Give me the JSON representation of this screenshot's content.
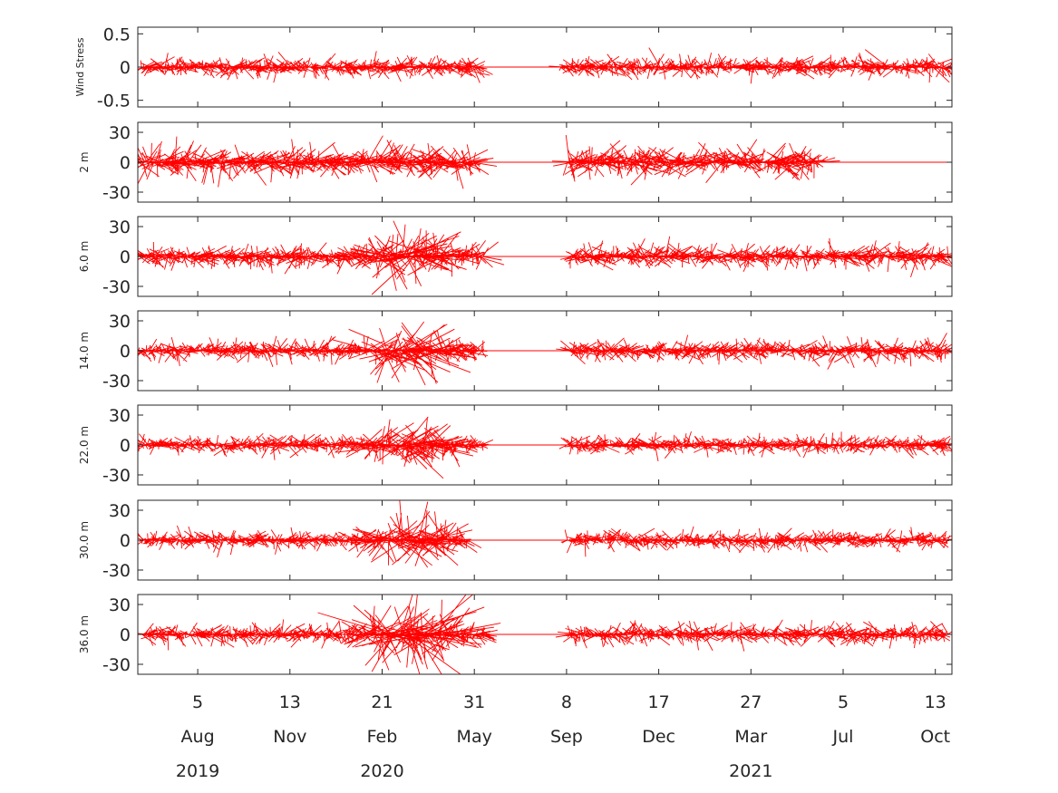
{
  "chart_data": {
    "type": "stick-vector time series",
    "vector_color": "#ff0000",
    "x_axis": {
      "day_labels": [
        "5",
        "13",
        "21",
        "31",
        "8",
        "17",
        "27",
        "5",
        "13"
      ],
      "month_labels": [
        "Aug",
        "Nov",
        "Feb",
        "May",
        "Sep",
        "Dec",
        "Mar",
        "Jul",
        "Oct"
      ],
      "year_labels": [
        "2019",
        "2020",
        "2021"
      ],
      "tick_dates": [
        "2019-08-05",
        "2019-11-13",
        "2020-02-21",
        "2020-05-31",
        "2020-09-08",
        "2020-12-17",
        "2021-03-27",
        "2021-07-05",
        "2021-10-13"
      ],
      "xlim": [
        "2019-06-01",
        "2021-10-31"
      ],
      "data_gap": [
        "2020-06-10",
        "2020-09-05"
      ]
    },
    "panels": [
      {
        "ylabel": "Wind Stress",
        "ylim": [
          -0.6,
          0.6
        ],
        "ytick_values": [
          -0.5,
          0,
          0.5
        ],
        "ytick_labels": [
          "-0.5",
          "0",
          "0.5"
        ],
        "data_start": "2019-06-05",
        "data_end": "2021-10-29",
        "gap": [
          "2020-06-06",
          "2020-09-01"
        ],
        "amplitude": 0.13,
        "seed": 11
      },
      {
        "ylabel": "2 m",
        "ylim": [
          -40,
          40
        ],
        "ytick_values": [
          -30,
          0,
          30
        ],
        "ytick_labels": [
          "-30",
          "0",
          "30"
        ],
        "data_start": "2019-06-01",
        "data_end": "2021-10-29",
        "gap": [
          "2020-06-01",
          "2020-09-08"
        ],
        "data_stop": "2021-06-10",
        "amplitude": 14,
        "seed": 23
      },
      {
        "ylabel": "6.0 m",
        "ylim": [
          -40,
          40
        ],
        "ytick_values": [
          -30,
          0,
          30
        ],
        "ytick_labels": [
          "-30",
          "0",
          "30"
        ],
        "data_start": "2019-06-01",
        "data_end": "2021-10-27",
        "gap": [
          "2020-06-10",
          "2020-09-10"
        ],
        "amplitude": 10,
        "burst_amplitude": 26,
        "seed": 37
      },
      {
        "ylabel": "14.0 m",
        "ylim": [
          -40,
          40
        ],
        "ytick_values": [
          -30,
          0,
          30
        ],
        "ytick_labels": [
          "-30",
          "0",
          "30"
        ],
        "data_start": "2019-06-01",
        "data_end": "2021-10-27",
        "gap": [
          "2020-06-10",
          "2020-09-08"
        ],
        "amplitude": 9,
        "burst_amplitude": 26,
        "seed": 53
      },
      {
        "ylabel": "22.0 m",
        "ylim": [
          -40,
          40
        ],
        "ytick_values": [
          -30,
          0,
          30
        ],
        "ytick_labels": [
          "-30",
          "0",
          "30"
        ],
        "data_start": "2019-06-01",
        "data_end": "2021-10-27",
        "gap": [
          "2020-06-10",
          "2020-09-08"
        ],
        "amplitude": 8,
        "burst_amplitude": 24,
        "seed": 71
      },
      {
        "ylabel": "30.0 m",
        "ylim": [
          -40,
          40
        ],
        "ytick_values": [
          -30,
          0,
          30
        ],
        "ytick_labels": [
          "-30",
          "0",
          "30"
        ],
        "data_start": "2019-06-05",
        "data_end": "2021-10-27",
        "gap": [
          "2020-05-25",
          "2020-09-08"
        ],
        "amplitude": 8,
        "burst_amplitude": 24,
        "seed": 89
      },
      {
        "ylabel": "36.0 m",
        "ylim": [
          -40,
          40
        ],
        "ytick_values": [
          -30,
          0,
          30
        ],
        "ytick_labels": [
          "-30",
          "0",
          "30"
        ],
        "data_start": "2019-06-05",
        "data_end": "2021-10-27",
        "gap": [
          "2020-06-15",
          "2020-09-10"
        ],
        "amplitude": 9,
        "burst_amplitude": 34,
        "seed": 97
      }
    ]
  }
}
